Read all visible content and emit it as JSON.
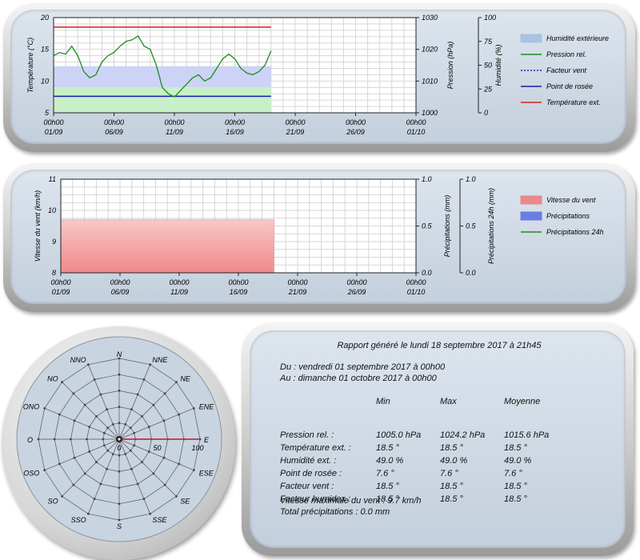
{
  "chart_data": [
    {
      "type": "line",
      "x_ticks": [
        {
          "time": "00h00",
          "date": "01/09"
        },
        {
          "time": "00h00",
          "date": "06/09"
        },
        {
          "time": "00h00",
          "date": "11/09"
        },
        {
          "time": "00h00",
          "date": "16/09"
        },
        {
          "time": "00h00",
          "date": "21/09"
        },
        {
          "time": "00h00",
          "date": "26/09"
        },
        {
          "time": "00h00",
          "date": "01/10"
        }
      ],
      "x_range_days": [
        0,
        30
      ],
      "y_left": {
        "label": "Température (°C)",
        "range": [
          5,
          20
        ],
        "ticks": [
          "20",
          "15",
          "10",
          "5"
        ]
      },
      "y_right1": {
        "label": "Pression (hPa)",
        "range": [
          1000,
          1030
        ],
        "ticks": [
          "1030",
          "1020",
          "1010",
          "1000"
        ]
      },
      "y_right2": {
        "label": "Humidité (%)",
        "range": [
          0,
          100
        ],
        "ticks": [
          "100",
          "75",
          "50",
          "25",
          "0"
        ]
      },
      "legend": [
        {
          "label": "Humidité extérieure",
          "kind": "area",
          "color": "#a9c4e0"
        },
        {
          "label": "Pression rel.",
          "kind": "line",
          "color": "#1e8c1e"
        },
        {
          "label": "Facteur vent",
          "kind": "dotted",
          "color": "#1a1aa6"
        },
        {
          "label": "Point de rosée",
          "kind": "line",
          "color": "#1a1ab0"
        },
        {
          "label": "Température ext.",
          "kind": "line",
          "color": "#d42020"
        }
      ],
      "series": [
        {
          "name": "Humidité extérieure",
          "axis": "y_right2",
          "constant": 49.0,
          "x_end_days": 18.0
        },
        {
          "name": "Point de rosée",
          "axis": "y_left",
          "constant": 7.6,
          "x_end_days": 18.0
        },
        {
          "name": "Température ext.",
          "axis": "y_left",
          "constant": 18.5,
          "x_end_days": 18.0
        },
        {
          "name": "Pression rel.",
          "axis": "y_right1",
          "x": [
            0,
            0.5,
            1,
            1.5,
            2,
            2.5,
            3,
            3.5,
            4,
            4.5,
            5,
            5.5,
            6,
            6.5,
            7,
            7.5,
            8,
            8.5,
            9,
            9.5,
            10,
            10.5,
            11,
            11.5,
            12,
            12.5,
            13,
            13.5,
            14,
            14.5,
            15,
            15.5,
            16,
            16.5,
            17,
            17.5,
            18
          ],
          "values": [
            1018,
            1019,
            1018.5,
            1021,
            1018,
            1013,
            1011,
            1012,
            1016,
            1018,
            1019,
            1021,
            1022.5,
            1023,
            1024.2,
            1021,
            1020,
            1015,
            1008,
            1006,
            1005,
            1007,
            1009,
            1011,
            1012,
            1010,
            1011,
            1014,
            1017,
            1018.5,
            1017,
            1014,
            1012.5,
            1012,
            1013,
            1015,
            1019.5
          ]
        }
      ]
    },
    {
      "type": "area",
      "x_ticks": [
        {
          "time": "00h00",
          "date": "01/09"
        },
        {
          "time": "00h00",
          "date": "06/09"
        },
        {
          "time": "00h00",
          "date": "11/09"
        },
        {
          "time": "00h00",
          "date": "16/09"
        },
        {
          "time": "00h00",
          "date": "21/09"
        },
        {
          "time": "00h00",
          "date": "26/09"
        },
        {
          "time": "00h00",
          "date": "01/10"
        }
      ],
      "x_range_days": [
        0,
        30
      ],
      "y_left": {
        "label": "Vitesse du vent (km/h)",
        "range": [
          8,
          11
        ],
        "ticks": [
          "11",
          "10",
          "9",
          "8"
        ]
      },
      "y_right1": {
        "label": "Précipitations (mm)",
        "range": [
          0,
          1
        ],
        "ticks": [
          "1.0",
          "0.5",
          "0.0"
        ]
      },
      "y_right2": {
        "label": "Précipitations 24h (mm)",
        "range": [
          0,
          1
        ],
        "ticks": [
          "1.0",
          "0.5",
          "0.0"
        ]
      },
      "legend": [
        {
          "label": "Vitesse du vent",
          "kind": "area",
          "color": "#e88a8a"
        },
        {
          "label": "Précipitations",
          "kind": "area",
          "color": "#6a7ee0"
        },
        {
          "label": "Précipitations 24h",
          "kind": "line",
          "color": "#1e8c1e"
        }
      ],
      "series": [
        {
          "name": "Vitesse du vent",
          "axis": "y_left",
          "constant": 9.7,
          "x_end_days": 18.0
        },
        {
          "name": "Précipitations",
          "axis": "y_right1",
          "constant": 0.0,
          "x_end_days": 18.0
        },
        {
          "name": "Précipitations 24h",
          "axis": "y_right2",
          "constant": 0.0,
          "x_end_days": 18.0
        }
      ]
    },
    {
      "type": "polar",
      "directions": [
        "N",
        "NNE",
        "NE",
        "ENE",
        "E",
        "ESE",
        "SE",
        "SSE",
        "S",
        "SSO",
        "SO",
        "OSO",
        "O",
        "ONO",
        "NO",
        "NNO"
      ],
      "radial_ticks": [
        "0",
        "50",
        "100"
      ],
      "radial_range": [
        0,
        100
      ],
      "series": [
        {
          "direction": "E",
          "value": 100
        }
      ]
    }
  ],
  "report": {
    "title": "Rapport généré le lundi 18 septembre 2017 à 21h45",
    "from": "Du : vendredi 01 septembre 2017 à 00h00",
    "to": "Au : dimanche 01 octobre 2017 à 00h00",
    "columns": [
      "",
      "Min",
      "Max",
      "Moyenne"
    ],
    "rows": [
      [
        "Pression rel. :",
        "1005.0 hPa",
        "1024.2 hPa",
        "1015.6 hPa"
      ],
      [
        "Température ext. :",
        "18.5 °",
        "18.5 °",
        "18.5 °"
      ],
      [
        "Humidité ext. :",
        "49.0 %",
        "49.0 %",
        "49.0 %"
      ],
      [
        "Point de rosée :",
        "7.6 °",
        "7.6 °",
        "7.6 °"
      ],
      [
        "Facteur vent :",
        "18.5 °",
        "18.5 °",
        "18.5 °"
      ],
      [
        "Facteur humidex :",
        "18.5 °",
        "18.5 °",
        "18.5 °"
      ]
    ],
    "max_wind": "Vitesse maximale du vent : 9.7 km/h",
    "total_rain": "Total précipitations : 0.0 mm"
  }
}
